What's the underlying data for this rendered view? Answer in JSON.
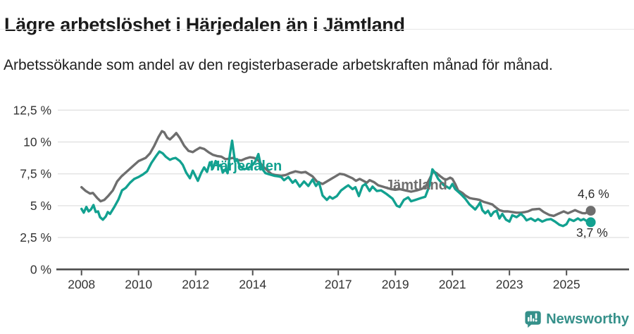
{
  "colors": {
    "harjedalen": "#12a190",
    "jamtland": "#6e6e6e",
    "axis_text": "#333333",
    "axis_line": "#4d4d4d",
    "gridline": "#e2e2e2",
    "value_label": "#2b2b2b",
    "logo_teal": "#35908a"
  },
  "footer": {
    "brand": "Newsworthy"
  },
  "chart_data": {
    "type": "line",
    "title": "Lägre arbetslöshet i Härjedalen än i Jämtland",
    "subtitle": "Arbetssökande som andel av den registerbaserade arbetskraften månad för månad.",
    "xlabel": "",
    "ylabel": "",
    "unit": "%",
    "ylim": [
      0,
      12.5
    ],
    "xlim": [
      2007.1,
      2027.2
    ],
    "grid": "horizontal",
    "legend_position": "inline-labels",
    "y_ticks": [
      {
        "label": "12,5 %",
        "value": 12.5
      },
      {
        "label": "10 %",
        "value": 10
      },
      {
        "label": "7,5 %",
        "value": 7.5
      },
      {
        "label": "5 %",
        "value": 5
      },
      {
        "label": "2,5 %",
        "value": 2.5
      },
      {
        "label": "0 %",
        "value": 0
      }
    ],
    "x_ticks": [
      {
        "label": "2008",
        "year": 2008
      },
      {
        "label": "2010",
        "year": 2010
      },
      {
        "label": "2012",
        "year": 2012
      },
      {
        "label": "2014",
        "year": 2014
      },
      {
        "label": "2017",
        "year": 2017
      },
      {
        "label": "2019",
        "year": 2019
      },
      {
        "label": "2021",
        "year": 2021
      },
      {
        "label": "2023",
        "year": 2023
      },
      {
        "label": "2025",
        "year": 2025
      }
    ],
    "series": [
      {
        "name": "Härjedalen",
        "color": "#12a190",
        "end_label": "3,7 %",
        "end_value": 3.7,
        "points": [
          [
            2008.0,
            4.75
          ],
          [
            2008.08,
            4.45
          ],
          [
            2008.17,
            4.9
          ],
          [
            2008.25,
            4.55
          ],
          [
            2008.33,
            4.7
          ],
          [
            2008.42,
            5.05
          ],
          [
            2008.5,
            4.5
          ],
          [
            2008.58,
            4.55
          ],
          [
            2008.65,
            4.1
          ],
          [
            2008.75,
            3.9
          ],
          [
            2008.85,
            4.15
          ],
          [
            2008.92,
            4.5
          ],
          [
            2009.0,
            4.35
          ],
          [
            2009.15,
            4.9
          ],
          [
            2009.3,
            5.5
          ],
          [
            2009.42,
            6.2
          ],
          [
            2009.55,
            6.4
          ],
          [
            2009.7,
            6.8
          ],
          [
            2009.85,
            7.1
          ],
          [
            2010.0,
            7.25
          ],
          [
            2010.15,
            7.45
          ],
          [
            2010.3,
            7.7
          ],
          [
            2010.45,
            8.35
          ],
          [
            2010.6,
            8.85
          ],
          [
            2010.73,
            9.25
          ],
          [
            2010.85,
            9.1
          ],
          [
            2010.95,
            8.85
          ],
          [
            2011.1,
            8.6
          ],
          [
            2011.2,
            8.7
          ],
          [
            2011.3,
            8.75
          ],
          [
            2011.45,
            8.5
          ],
          [
            2011.55,
            8.2
          ],
          [
            2011.67,
            7.6
          ],
          [
            2011.8,
            7.15
          ],
          [
            2011.9,
            7.75
          ],
          [
            2012.0,
            7.3
          ],
          [
            2012.08,
            6.95
          ],
          [
            2012.2,
            7.6
          ],
          [
            2012.3,
            8.0
          ],
          [
            2012.4,
            7.65
          ],
          [
            2012.5,
            8.4
          ],
          [
            2012.6,
            7.9
          ],
          [
            2012.7,
            8.5
          ],
          [
            2012.8,
            8.1
          ],
          [
            2012.88,
            8.2
          ],
          [
            2012.95,
            7.6
          ],
          [
            2013.05,
            7.85
          ],
          [
            2013.12,
            7.55
          ],
          [
            2013.2,
            9.0
          ],
          [
            2013.28,
            10.1
          ],
          [
            2013.38,
            8.45
          ],
          [
            2013.45,
            8.65
          ],
          [
            2013.55,
            8.1
          ],
          [
            2013.7,
            7.85
          ],
          [
            2013.85,
            7.95
          ],
          [
            2014.0,
            8.2
          ],
          [
            2014.1,
            8.5
          ],
          [
            2014.2,
            9.05
          ],
          [
            2014.3,
            8.0
          ],
          [
            2014.45,
            7.55
          ],
          [
            2014.6,
            7.45
          ],
          [
            2014.75,
            7.35
          ],
          [
            2014.9,
            7.3
          ],
          [
            2015.0,
            7.25
          ],
          [
            2015.1,
            7.0
          ],
          [
            2015.25,
            7.25
          ],
          [
            2015.4,
            6.8
          ],
          [
            2015.5,
            7.0
          ],
          [
            2015.65,
            6.5
          ],
          [
            2015.8,
            6.9
          ],
          [
            2015.95,
            6.55
          ],
          [
            2016.1,
            7.05
          ],
          [
            2016.22,
            6.55
          ],
          [
            2016.32,
            6.85
          ],
          [
            2016.45,
            5.8
          ],
          [
            2016.6,
            5.45
          ],
          [
            2016.7,
            5.7
          ],
          [
            2016.8,
            5.55
          ],
          [
            2016.95,
            5.75
          ],
          [
            2017.1,
            6.2
          ],
          [
            2017.25,
            6.45
          ],
          [
            2017.35,
            6.6
          ],
          [
            2017.5,
            6.3
          ],
          [
            2017.6,
            6.45
          ],
          [
            2017.72,
            5.75
          ],
          [
            2017.85,
            6.55
          ],
          [
            2017.95,
            6.7
          ],
          [
            2018.1,
            6.15
          ],
          [
            2018.2,
            6.5
          ],
          [
            2018.35,
            6.15
          ],
          [
            2018.5,
            6.2
          ],
          [
            2018.7,
            5.9
          ],
          [
            2018.9,
            5.55
          ],
          [
            2019.05,
            5.0
          ],
          [
            2019.15,
            4.9
          ],
          [
            2019.3,
            5.45
          ],
          [
            2019.45,
            5.65
          ],
          [
            2019.55,
            5.35
          ],
          [
            2019.7,
            5.45
          ],
          [
            2019.9,
            5.6
          ],
          [
            2020.05,
            5.7
          ],
          [
            2020.2,
            6.6
          ],
          [
            2020.3,
            7.85
          ],
          [
            2020.4,
            7.55
          ],
          [
            2020.5,
            7.1
          ],
          [
            2020.6,
            6.85
          ],
          [
            2020.7,
            6.6
          ],
          [
            2020.8,
            6.5
          ],
          [
            2020.9,
            6.35
          ],
          [
            2021.0,
            6.7
          ],
          [
            2021.1,
            6.3
          ],
          [
            2021.2,
            6.1
          ],
          [
            2021.3,
            5.9
          ],
          [
            2021.45,
            5.55
          ],
          [
            2021.6,
            5.1
          ],
          [
            2021.7,
            4.9
          ],
          [
            2021.8,
            4.7
          ],
          [
            2021.9,
            5.0
          ],
          [
            2021.97,
            5.25
          ],
          [
            2022.05,
            4.65
          ],
          [
            2022.15,
            4.4
          ],
          [
            2022.25,
            4.6
          ],
          [
            2022.35,
            4.2
          ],
          [
            2022.45,
            4.5
          ],
          [
            2022.55,
            4.6
          ],
          [
            2022.65,
            4.0
          ],
          [
            2022.75,
            4.35
          ],
          [
            2022.88,
            3.9
          ],
          [
            2023.0,
            3.75
          ],
          [
            2023.1,
            4.25
          ],
          [
            2023.25,
            4.1
          ],
          [
            2023.4,
            4.35
          ],
          [
            2023.5,
            4.15
          ],
          [
            2023.6,
            3.85
          ],
          [
            2023.75,
            4.0
          ],
          [
            2023.9,
            3.8
          ],
          [
            2024.0,
            3.95
          ],
          [
            2024.15,
            3.75
          ],
          [
            2024.3,
            3.9
          ],
          [
            2024.45,
            3.95
          ],
          [
            2024.6,
            3.75
          ],
          [
            2024.75,
            3.5
          ],
          [
            2024.88,
            3.4
          ],
          [
            2025.0,
            3.55
          ],
          [
            2025.1,
            3.95
          ],
          [
            2025.25,
            3.8
          ],
          [
            2025.4,
            4.0
          ],
          [
            2025.5,
            3.85
          ],
          [
            2025.6,
            3.95
          ],
          [
            2025.7,
            3.8
          ],
          [
            2025.78,
            3.9
          ],
          [
            2025.85,
            3.7
          ]
        ]
      },
      {
        "name": "Jämtland",
        "color": "#6e6e6e",
        "end_label": "4,6 %",
        "end_value": 4.6,
        "points": [
          [
            2008.0,
            6.45
          ],
          [
            2008.15,
            6.15
          ],
          [
            2008.3,
            5.95
          ],
          [
            2008.4,
            6.0
          ],
          [
            2008.55,
            5.6
          ],
          [
            2008.67,
            5.35
          ],
          [
            2008.8,
            5.45
          ],
          [
            2008.95,
            5.8
          ],
          [
            2009.1,
            6.2
          ],
          [
            2009.25,
            6.9
          ],
          [
            2009.4,
            7.3
          ],
          [
            2009.55,
            7.6
          ],
          [
            2009.7,
            7.9
          ],
          [
            2009.85,
            8.2
          ],
          [
            2010.0,
            8.5
          ],
          [
            2010.1,
            8.6
          ],
          [
            2010.25,
            8.75
          ],
          [
            2010.4,
            9.1
          ],
          [
            2010.55,
            9.7
          ],
          [
            2010.7,
            10.4
          ],
          [
            2010.82,
            10.85
          ],
          [
            2010.9,
            10.75
          ],
          [
            2011.0,
            10.35
          ],
          [
            2011.1,
            10.2
          ],
          [
            2011.22,
            10.45
          ],
          [
            2011.32,
            10.7
          ],
          [
            2011.45,
            10.3
          ],
          [
            2011.6,
            9.7
          ],
          [
            2011.75,
            9.3
          ],
          [
            2011.9,
            9.2
          ],
          [
            2012.0,
            9.35
          ],
          [
            2012.15,
            9.55
          ],
          [
            2012.3,
            9.45
          ],
          [
            2012.45,
            9.2
          ],
          [
            2012.6,
            9.0
          ],
          [
            2012.75,
            8.9
          ],
          [
            2012.9,
            8.85
          ],
          [
            2013.05,
            8.65
          ],
          [
            2013.2,
            8.7
          ],
          [
            2013.3,
            8.75
          ],
          [
            2013.45,
            8.6
          ],
          [
            2013.6,
            8.55
          ],
          [
            2013.75,
            8.7
          ],
          [
            2013.9,
            8.8
          ],
          [
            2014.05,
            8.75
          ],
          [
            2014.2,
            8.55
          ],
          [
            2014.35,
            8.1
          ],
          [
            2014.5,
            7.8
          ],
          [
            2014.65,
            7.5
          ],
          [
            2014.8,
            7.4
          ],
          [
            2015.0,
            7.35
          ],
          [
            2015.15,
            7.4
          ],
          [
            2015.3,
            7.55
          ],
          [
            2015.5,
            7.7
          ],
          [
            2015.7,
            7.6
          ],
          [
            2015.85,
            7.65
          ],
          [
            2016.1,
            7.3
          ],
          [
            2016.25,
            6.9
          ],
          [
            2016.45,
            6.7
          ],
          [
            2016.6,
            6.9
          ],
          [
            2016.75,
            7.1
          ],
          [
            2016.9,
            7.3
          ],
          [
            2017.05,
            7.5
          ],
          [
            2017.2,
            7.45
          ],
          [
            2017.35,
            7.3
          ],
          [
            2017.5,
            7.15
          ],
          [
            2017.62,
            6.95
          ],
          [
            2017.75,
            7.1
          ],
          [
            2017.88,
            6.95
          ],
          [
            2018.0,
            6.8
          ],
          [
            2018.1,
            7.0
          ],
          [
            2018.25,
            6.85
          ],
          [
            2018.4,
            6.6
          ],
          [
            2018.55,
            6.5
          ],
          [
            2018.7,
            6.4
          ],
          [
            2018.85,
            6.3
          ],
          [
            2019.0,
            6.25
          ],
          [
            2019.15,
            6.3
          ],
          [
            2019.35,
            6.2
          ],
          [
            2019.55,
            6.1
          ],
          [
            2019.75,
            6.2
          ],
          [
            2019.9,
            6.3
          ],
          [
            2020.05,
            6.45
          ],
          [
            2020.2,
            7.1
          ],
          [
            2020.33,
            7.7
          ],
          [
            2020.45,
            7.55
          ],
          [
            2020.58,
            7.3
          ],
          [
            2020.7,
            7.1
          ],
          [
            2020.8,
            7.05
          ],
          [
            2020.92,
            7.2
          ],
          [
            2021.0,
            7.1
          ],
          [
            2021.1,
            6.7
          ],
          [
            2021.2,
            6.2
          ],
          [
            2021.35,
            6.0
          ],
          [
            2021.45,
            5.8
          ],
          [
            2021.6,
            5.6
          ],
          [
            2021.7,
            5.55
          ],
          [
            2021.85,
            5.5
          ],
          [
            2021.95,
            5.45
          ],
          [
            2022.1,
            5.3
          ],
          [
            2022.25,
            5.2
          ],
          [
            2022.4,
            5.1
          ],
          [
            2022.5,
            4.9
          ],
          [
            2022.65,
            4.65
          ],
          [
            2022.8,
            4.55
          ],
          [
            2022.95,
            4.55
          ],
          [
            2023.1,
            4.5
          ],
          [
            2023.25,
            4.45
          ],
          [
            2023.4,
            4.45
          ],
          [
            2023.55,
            4.5
          ],
          [
            2023.65,
            4.55
          ],
          [
            2023.8,
            4.7
          ],
          [
            2024.05,
            4.75
          ],
          [
            2024.2,
            4.5
          ],
          [
            2024.4,
            4.27
          ],
          [
            2024.55,
            4.2
          ],
          [
            2024.7,
            4.35
          ],
          [
            2024.8,
            4.45
          ],
          [
            2024.9,
            4.55
          ],
          [
            2025.05,
            4.4
          ],
          [
            2025.2,
            4.55
          ],
          [
            2025.3,
            4.65
          ],
          [
            2025.45,
            4.5
          ],
          [
            2025.55,
            4.42
          ],
          [
            2025.65,
            4.4
          ],
          [
            2025.75,
            4.5
          ],
          [
            2025.85,
            4.6
          ]
        ]
      }
    ]
  }
}
